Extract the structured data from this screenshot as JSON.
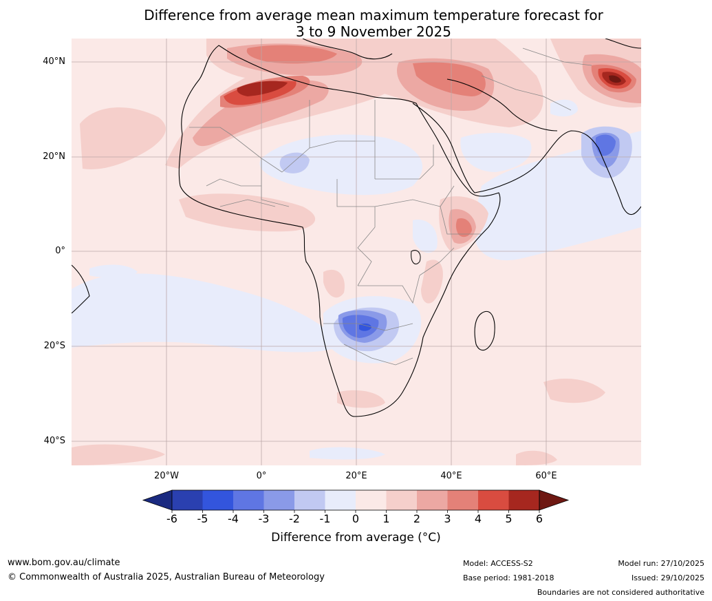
{
  "title": {
    "line1": "Difference from average mean maximum temperature forecast for",
    "line2": "3 to 9 November 2025"
  },
  "map": {
    "lat_labels": [
      "40°N",
      "20°N",
      "0°",
      "20°S",
      "40°S"
    ],
    "lon_labels": [
      "20°W",
      "0°",
      "20°E",
      "40°E",
      "60°E"
    ],
    "region": "Africa and Middle East"
  },
  "colorbar": {
    "ticks": [
      "-6",
      "-5",
      "-4",
      "-3",
      "-2",
      "-1",
      "0",
      "1",
      "2",
      "3",
      "4",
      "5",
      "6"
    ],
    "colors": [
      "#1a2a80",
      "#2a40b0",
      "#3355dd",
      "#5f76e3",
      "#8a9ae8",
      "#c1c9f2",
      "#e8ecfb",
      "#fbe9e7",
      "#f5cfcb",
      "#eca8a3",
      "#e48178",
      "#d94c40",
      "#a6271f",
      "#6e1812"
    ],
    "label": "Difference from average (°C)"
  },
  "footer": {
    "url": "www.bom.gov.au/climate",
    "copyright": "© Commonwealth of Australia 2025, Australian Bureau of Meteorology",
    "model": "Model: ACCESS-S2",
    "base_period": "Base period: 1981-2018",
    "model_run": "Model run: 27/10/2025",
    "issued": "Issued: 29/10/2025",
    "disclaimer": "Boundaries are not considered authoritative"
  }
}
